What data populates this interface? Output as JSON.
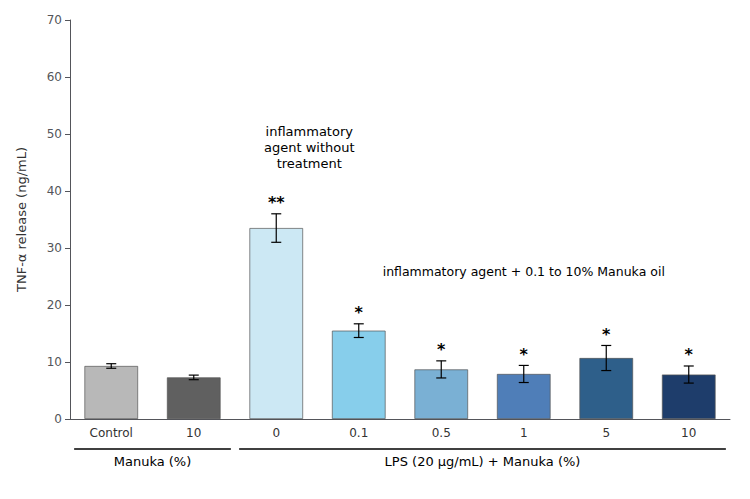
{
  "chart_data": {
    "type": "bar",
    "categories": [
      "Control",
      "10",
      "0",
      "0.1",
      "0.5",
      "1",
      "5",
      "10"
    ],
    "values": [
      9.3,
      7.3,
      33.5,
      15.5,
      8.7,
      7.9,
      10.7,
      7.8
    ],
    "errors": [
      0.4,
      0.4,
      2.5,
      1.2,
      1.5,
      1.5,
      2.2,
      1.5
    ],
    "colors": [
      "#b8b8b8",
      "#606060",
      "#cce8f4",
      "#87ceeb",
      "#7ab0d4",
      "#4f7eb8",
      "#2e5f8a",
      "#1e3d6b"
    ],
    "significance": [
      null,
      null,
      "**",
      "*",
      "*",
      "*",
      "*",
      "*"
    ],
    "ylabel": "TNF-α release (ng/mL)",
    "ylim": [
      0,
      70
    ],
    "yticks": [
      0,
      10,
      20,
      30,
      40,
      50,
      60,
      70
    ],
    "annotations": [
      "inflammatory\nagent without\ntreatment",
      "inflammatory agent + 0.1 to 10% Manuka oil"
    ],
    "groups": [
      {
        "label": "Manuka (%)",
        "categories": [
          "Control",
          "10"
        ]
      },
      {
        "label": "LPS (20 μg/mL) + Manuka (%)",
        "categories": [
          "0",
          "0.1",
          "0.5",
          "1",
          "5",
          "10"
        ]
      }
    ],
    "grid": false
  }
}
